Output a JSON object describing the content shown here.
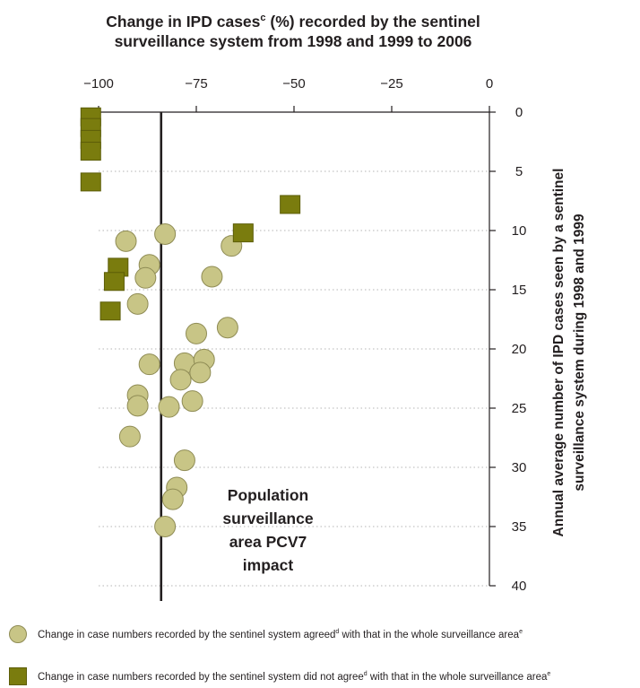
{
  "colors": {
    "agreed_fill": "#c8c586",
    "agreed_stroke": "#8f8c55",
    "disagreed_fill": "#7a7c0e",
    "disagreed_stroke": "#5c5d08",
    "grid": "#b5b5b5",
    "axis": "#231f20"
  },
  "chart_data": {
    "type": "scatter",
    "title_lines": [
      {
        "main": "Change in IPD cases",
        "sup": "c",
        "rest": " (%) recorded by the sentinel"
      },
      {
        "main": "surveillance system from 1998 and 1999 to 2006",
        "sup": "",
        "rest": ""
      }
    ],
    "xlabel": "",
    "xaxis_position": "top",
    "xlim": [
      -100,
      0
    ],
    "xticks": [
      -100,
      -75,
      -50,
      -25,
      0
    ],
    "xtick_labels": [
      "−100",
      "−75",
      "−50",
      "−25",
      "0"
    ],
    "ylabel_lines": [
      "Annual average number of IPD cases seen by a sentinel",
      "surveillance system during 1998 and 1999"
    ],
    "yaxis_position": "right",
    "ylim": [
      0,
      40
    ],
    "y_inverted": true,
    "yticks": [
      0,
      5,
      10,
      15,
      20,
      25,
      30,
      35,
      40
    ],
    "ytick_labels": [
      "0",
      "5",
      "10",
      "15",
      "20",
      "25",
      "30",
      "35",
      "40"
    ],
    "grid": "horizontal dotted",
    "reference_line": {
      "x": -84,
      "label_lines": [
        "Population",
        "surveillance",
        "area PCV7",
        "impact"
      ]
    },
    "series": [
      {
        "name": "Change in case numbers recorded by the sentinel system agreed with that in the whole surveillance area",
        "marker": "circle",
        "points": [
          [
            -83,
            10.3
          ],
          [
            -93,
            10.9
          ],
          [
            -66,
            11.3
          ],
          [
            -87,
            12.9
          ],
          [
            -88,
            14.0
          ],
          [
            -71,
            13.9
          ],
          [
            -90,
            16.2
          ],
          [
            -67,
            18.2
          ],
          [
            -75,
            18.7
          ],
          [
            -87,
            21.3
          ],
          [
            -78,
            21.2
          ],
          [
            -73,
            20.9
          ],
          [
            -74,
            22.0
          ],
          [
            -79,
            22.6
          ],
          [
            -90,
            23.9
          ],
          [
            -76,
            24.4
          ],
          [
            -90,
            24.8
          ],
          [
            -82,
            24.9
          ],
          [
            -92,
            27.4
          ],
          [
            -78,
            29.4
          ],
          [
            -80,
            31.7
          ],
          [
            -81,
            32.7
          ],
          [
            -83,
            35.0
          ]
        ]
      },
      {
        "name": "Change in case numbers recorded by the sentinel system did not agree with that in the whole surveillance area",
        "marker": "square",
        "points": [
          [
            -102,
            0.4
          ],
          [
            -102,
            1.3
          ],
          [
            -102,
            2.3
          ],
          [
            -102,
            3.3
          ],
          [
            -102,
            5.9
          ],
          [
            -51,
            7.8
          ],
          [
            -63,
            10.2
          ],
          [
            -95,
            13.1
          ],
          [
            -96,
            14.3
          ],
          [
            -97,
            16.8
          ]
        ]
      }
    ]
  },
  "legend": {
    "agreed": {
      "before": "Change in case numbers recorded by the sentinel system agreed",
      "sup1": "d",
      "after": " with that in the whole surveillance area",
      "sup2": "e"
    },
    "disagreed": {
      "before": "Change in case numbers recorded by the sentinel system did not agree",
      "sup1": "d",
      "after": " with that in the whole surveillance area",
      "sup2": "e"
    }
  }
}
